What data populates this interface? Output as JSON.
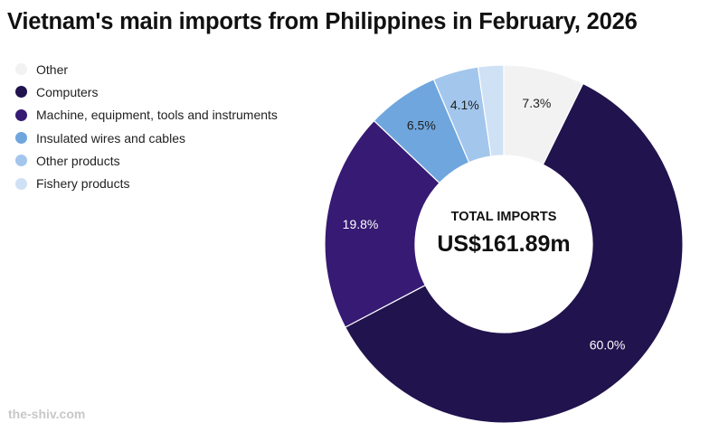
{
  "chart_data": {
    "type": "pie",
    "title": "Vietnam's main imports from Philippines in February, 2026",
    "center": {
      "label": "TOTAL IMPORTS",
      "value": "US$161.89m"
    },
    "legend_position": "top-left",
    "slices": [
      {
        "name": "Other",
        "value": 7.3,
        "label": "7.3%",
        "color": "#f2f2f2",
        "label_color": "#222222"
      },
      {
        "name": "Computers",
        "value": 60.0,
        "label": "60.0%",
        "color": "#21134d",
        "label_color": "#ffffff"
      },
      {
        "name": "Machine, equipment, tools and instruments",
        "value": 19.8,
        "label": "19.8%",
        "color": "#371a73",
        "label_color": "#ffffff"
      },
      {
        "name": "Insulated wires and cables",
        "value": 6.5,
        "label": "6.5%",
        "color": "#6fa6de",
        "label_color": "#222222"
      },
      {
        "name": "Other products",
        "value": 4.1,
        "label": "4.1%",
        "color": "#a3c6ec",
        "label_color": "#222222"
      },
      {
        "name": "Fishery products",
        "value": 2.3,
        "label": "",
        "color": "#cfe1f5",
        "label_color": "#222222"
      }
    ]
  },
  "watermark": "the-shiv.com"
}
